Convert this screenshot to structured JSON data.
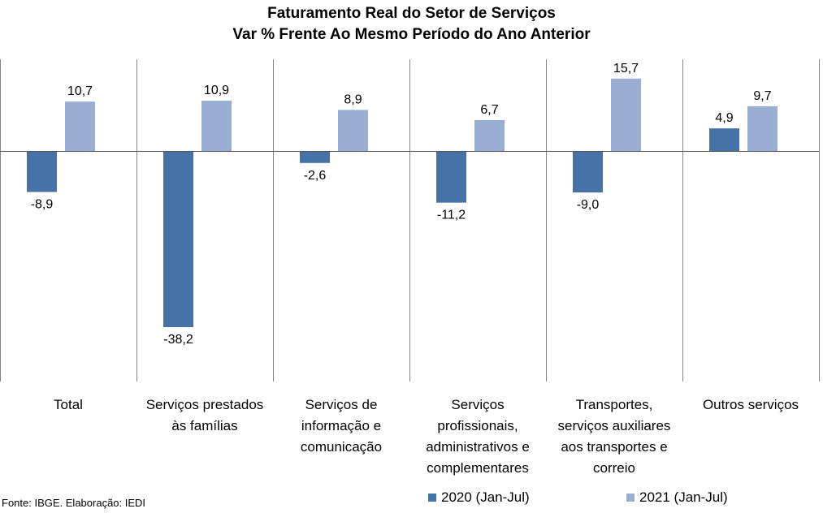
{
  "chart_data": {
    "type": "bar",
    "title": "Faturamento Real do Setor de Serviços",
    "subtitle": "Var % Frente Ao Mesmo Período do Ano Anterior",
    "categories": [
      [
        "Total"
      ],
      [
        "Serviços prestados",
        "às famílias"
      ],
      [
        "Serviços de",
        "informação e",
        "comunicação"
      ],
      [
        "Serviços",
        "profissionais,",
        "administrativos e",
        "complementares"
      ],
      [
        "Transportes,",
        "serviços auxiliares",
        "aos transportes e",
        "correio"
      ],
      [
        "Outros serviços"
      ]
    ],
    "series": [
      {
        "name": "2020 (Jan-Jul)",
        "color": "#4672a8",
        "values": [
          -8.9,
          -38.2,
          -2.6,
          -11.2,
          -9.0,
          4.9
        ],
        "labels": [
          "-8,9",
          "-38,2",
          "-2,6",
          "-11,2",
          "-9,0",
          "4,9"
        ]
      },
      {
        "name": "2021 (Jan-Jul)",
        "color": "#9aadd2",
        "values": [
          10.7,
          10.9,
          8.9,
          6.7,
          15.7,
          9.7
        ],
        "labels": [
          "10,7",
          "10,9",
          "8,9",
          "6,7",
          "15,7",
          "9,7"
        ]
      }
    ],
    "legend_position": "bottom-right",
    "grid": false
  },
  "source": "Fonte: IBGE. Elaboração: IEDI"
}
